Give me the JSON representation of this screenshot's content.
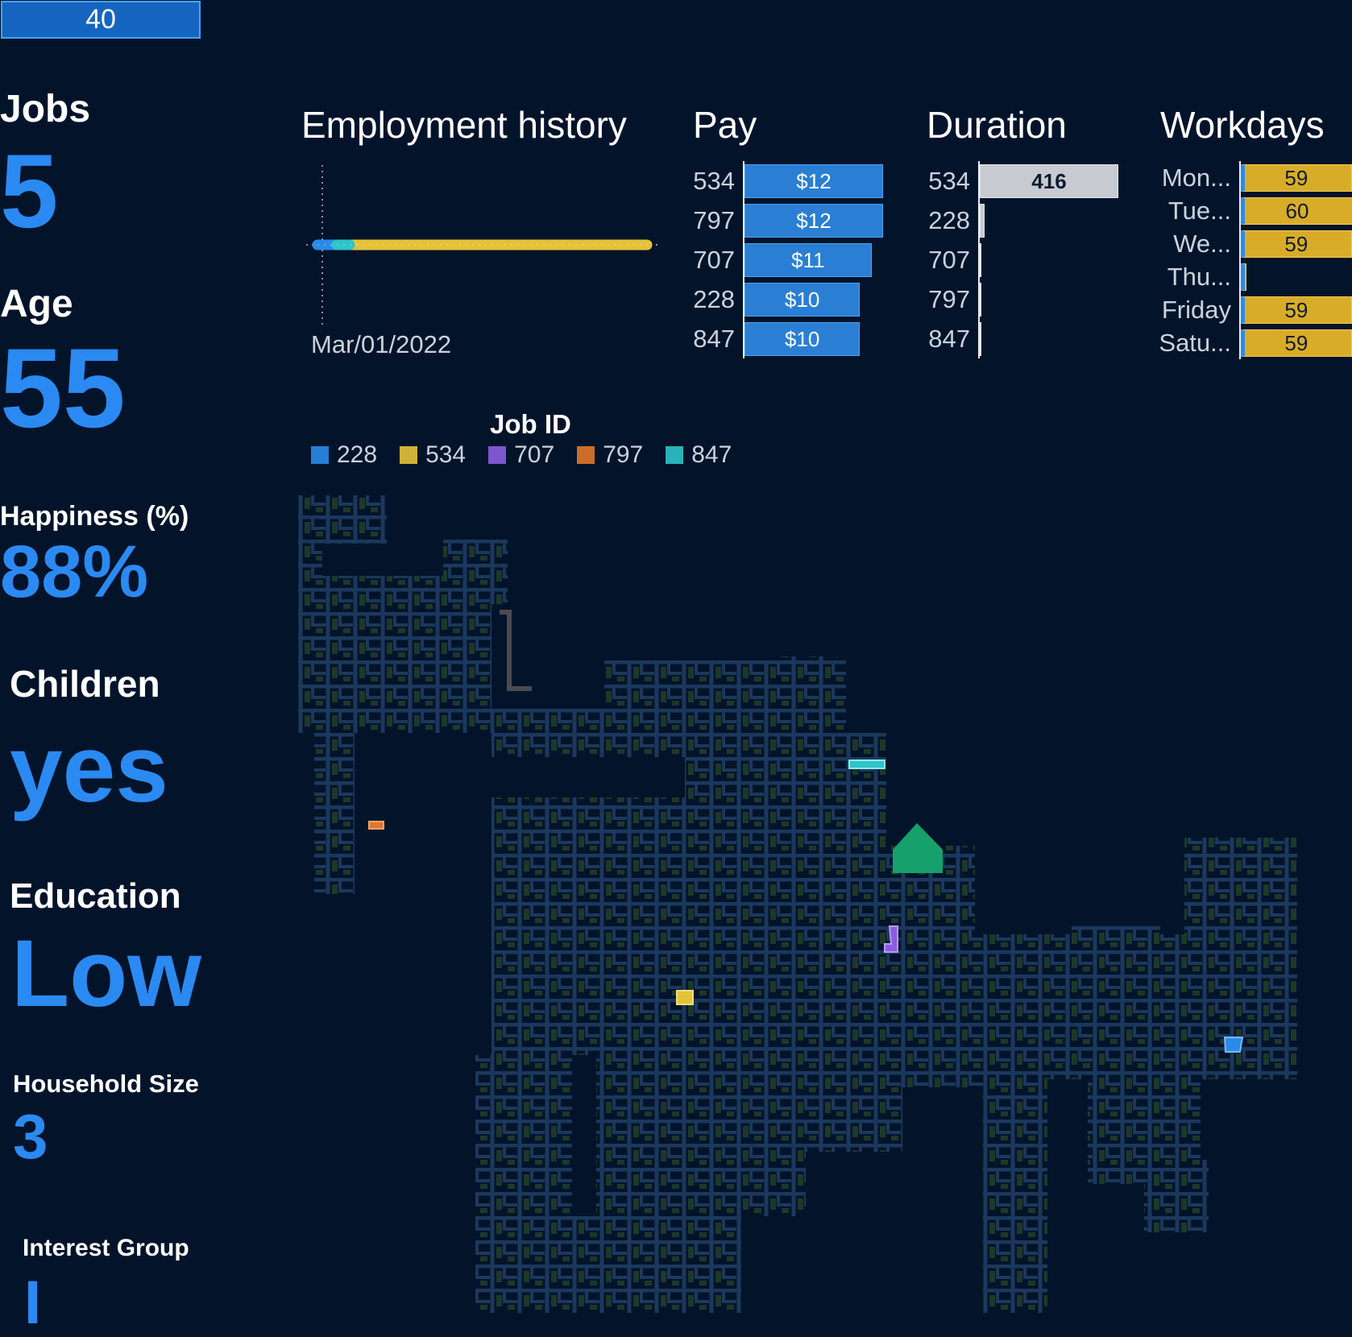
{
  "citizen_id": "40",
  "stats": {
    "jobs": {
      "label": "Jobs",
      "value": "5"
    },
    "age": {
      "label": "Age",
      "value": "55"
    },
    "happiness": {
      "label": "Happiness (%)",
      "value": "88%"
    },
    "children": {
      "label": "Children",
      "value": "yes"
    },
    "education": {
      "label": "Education",
      "value": "Low"
    },
    "household": {
      "label": "Household Size",
      "value": "3"
    },
    "interest": {
      "label": "Interest Group",
      "value": "I"
    }
  },
  "employment_history": {
    "title": "Employment history",
    "date_label": "Mar/01/2022"
  },
  "colors": {
    "228": "#2a8be8",
    "534": "#e5c339",
    "707": "#8b5de0",
    "797": "#e0772b",
    "847": "#2ec4c9",
    "home": "#16a06c",
    "background": "#03142a"
  },
  "chart_data": [
    {
      "type": "bar",
      "title": "Pay",
      "categories": [
        "534",
        "797",
        "707",
        "228",
        "847"
      ],
      "values": [
        12,
        12,
        11,
        10,
        10
      ],
      "value_labels": [
        "$12",
        "$12",
        "$11",
        "$10",
        "$10"
      ]
    },
    {
      "type": "bar",
      "title": "Duration",
      "categories": [
        "534",
        "228",
        "707",
        "797",
        "847"
      ],
      "values": [
        416,
        8,
        0,
        0,
        0
      ],
      "value_labels": [
        "416",
        "",
        "",
        "",
        ""
      ]
    },
    {
      "type": "bar",
      "title": "Workdays",
      "categories": [
        "Mon...",
        "Tue...",
        "We...",
        "Thu...",
        "Friday",
        "Satu..."
      ],
      "values": [
        59,
        60,
        59,
        3,
        59,
        59
      ],
      "value_labels": [
        "59",
        "60",
        "59",
        "",
        "59",
        "59"
      ]
    }
  ],
  "legend": {
    "title": "Job ID",
    "items": [
      "228",
      "534",
      "707",
      "797",
      "847"
    ]
  }
}
